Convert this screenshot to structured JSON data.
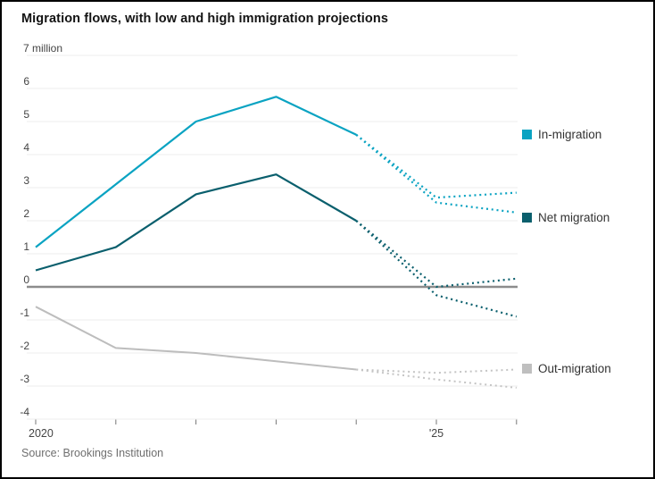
{
  "header": {
    "title": "Migration flows, with low and high immigration projections"
  },
  "footer": {
    "source": "Source: Brookings Institution"
  },
  "legend": {
    "items": [
      {
        "label": "In-migration",
        "color": "#0aa3c2"
      },
      {
        "label": "Net migration",
        "color": "#0a5f6d"
      },
      {
        "label": "Out-migration",
        "color": "#bfbfbf"
      }
    ]
  },
  "chart_data": {
    "type": "line",
    "title": "Migration flows, with low and high immigration projections",
    "unit_label": "7 million",
    "xlabel": "",
    "ylabel": "million",
    "ylim": [
      -4,
      7
    ],
    "grid": "horizontal",
    "legend_position": "right",
    "y_ticks": [
      {
        "v": 7,
        "label": "7 million"
      },
      {
        "v": 6,
        "label": "6"
      },
      {
        "v": 5,
        "label": "5"
      },
      {
        "v": 4,
        "label": "4"
      },
      {
        "v": 3,
        "label": "3"
      },
      {
        "v": 2,
        "label": "2"
      },
      {
        "v": 1,
        "label": "1"
      },
      {
        "v": 0,
        "label": "0"
      },
      {
        "v": -1,
        "label": "-1"
      },
      {
        "v": -2,
        "label": "-2"
      },
      {
        "v": -3,
        "label": "-3"
      },
      {
        "v": -4,
        "label": "-4"
      }
    ],
    "x_ticks": [
      {
        "year": 2020,
        "label": "2020"
      },
      {
        "year": 2021,
        "label": ""
      },
      {
        "year": 2022,
        "label": ""
      },
      {
        "year": 2023,
        "label": ""
      },
      {
        "year": 2024,
        "label": ""
      },
      {
        "year": 2025,
        "label": "'25"
      },
      {
        "year": 2026,
        "label": ""
      }
    ],
    "series": [
      {
        "name": "In-migration (actual)",
        "color": "#0aa3c2",
        "style": "solid",
        "x": [
          2020,
          2021,
          2022,
          2023,
          2024
        ],
        "values": [
          1.2,
          3.1,
          5.0,
          5.75,
          4.6
        ]
      },
      {
        "name": "In-migration high projection",
        "color": "#0aa3c2",
        "style": "dotted",
        "x": [
          2024,
          2025,
          2026
        ],
        "values": [
          4.6,
          2.7,
          2.85
        ]
      },
      {
        "name": "In-migration low projection",
        "color": "#0aa3c2",
        "style": "dotted",
        "x": [
          2024,
          2025,
          2026
        ],
        "values": [
          4.6,
          2.55,
          2.25
        ]
      },
      {
        "name": "Net migration (actual)",
        "color": "#0a5f6d",
        "style": "solid",
        "x": [
          2020,
          2021,
          2022,
          2023,
          2024
        ],
        "values": [
          0.5,
          1.2,
          2.8,
          3.4,
          2.0
        ]
      },
      {
        "name": "Net migration high projection",
        "color": "#0a5f6d",
        "style": "dotted",
        "x": [
          2024,
          2025,
          2026
        ],
        "values": [
          2.0,
          0.0,
          0.25
        ]
      },
      {
        "name": "Net migration low projection",
        "color": "#0a5f6d",
        "style": "dotted",
        "x": [
          2024,
          2025,
          2026
        ],
        "values": [
          2.0,
          -0.25,
          -0.9
        ]
      },
      {
        "name": "Out-migration (actual)",
        "color": "#bdbdbd",
        "style": "solid",
        "x": [
          2020,
          2021,
          2022,
          2023,
          2024
        ],
        "values": [
          -0.6,
          -1.85,
          -2.0,
          -2.25,
          -2.5
        ]
      },
      {
        "name": "Out-migration high projection",
        "color": "#c4c4c4",
        "style": "dotted",
        "x": [
          2024,
          2025,
          2026
        ],
        "values": [
          -2.5,
          -2.6,
          -2.5
        ]
      },
      {
        "name": "Out-migration low projection",
        "color": "#c4c4c4",
        "style": "dotted",
        "x": [
          2024,
          2025,
          2026
        ],
        "values": [
          -2.5,
          -2.8,
          -3.05
        ]
      }
    ]
  }
}
